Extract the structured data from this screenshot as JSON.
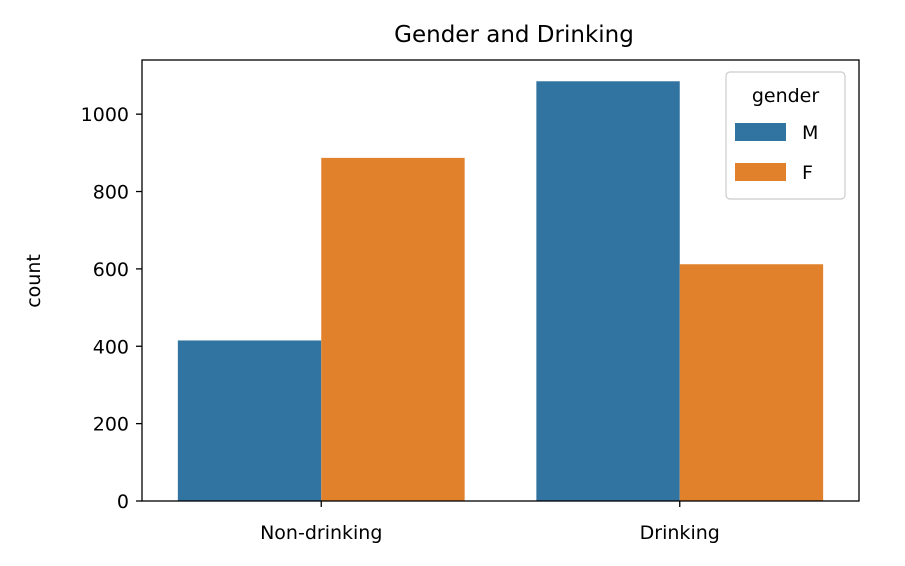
{
  "chart_data": {
    "type": "bar",
    "title": "Gender and Drinking",
    "xlabel": "",
    "ylabel": "count",
    "categories": [
      "Non-drinking",
      "Drinking"
    ],
    "series": [
      {
        "name": "M",
        "values": [
          415,
          1085
        ],
        "color": "#3274a1"
      },
      {
        "name": "F",
        "values": [
          887,
          612
        ],
        "color": "#e1812c"
      }
    ],
    "ylim": [
      0,
      1140
    ],
    "yticks": [
      0,
      200,
      400,
      600,
      800,
      1000
    ],
    "grid": false,
    "legend": {
      "title": "gender",
      "placement": "top-right"
    }
  }
}
